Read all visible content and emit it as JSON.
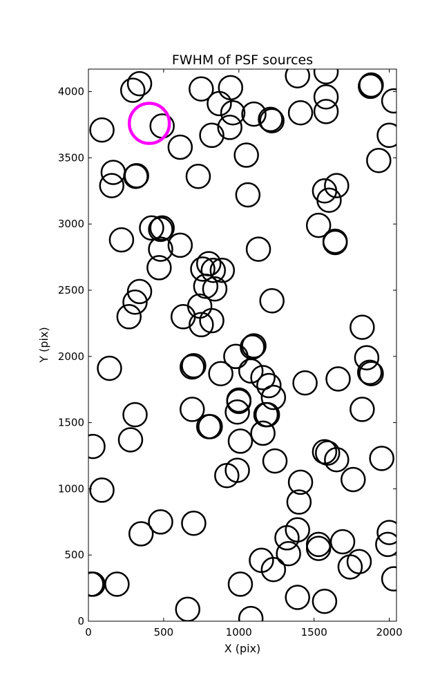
{
  "chart_data": {
    "type": "scatter",
    "title": "FWHM of PSF sources",
    "xlabel": "X (pix)",
    "ylabel": "Y (pix)",
    "xlim": [
      0,
      2048
    ],
    "ylim": [
      0,
      4170
    ],
    "xticks": [
      0,
      500,
      1000,
      1500,
      2000
    ],
    "yticks": [
      0,
      500,
      1000,
      1500,
      2000,
      2500,
      3000,
      3500,
      4000
    ],
    "grid": false,
    "marker": "open circle",
    "marker_color": "#000000",
    "highlight_color": "#ff00ff",
    "points": [
      [
        340,
        4060
      ],
      [
        295,
        4010
      ],
      [
        90,
        3710
      ],
      [
        490,
        3740
      ],
      [
        610,
        3580
      ],
      [
        165,
        3390
      ],
      [
        155,
        3290
      ],
      [
        315,
        3360
      ],
      [
        320,
        3365
      ],
      [
        730,
        3360
      ],
      [
        750,
        4020
      ],
      [
        870,
        3910
      ],
      [
        945,
        4030
      ],
      [
        960,
        3840
      ],
      [
        940,
        3730
      ],
      [
        820,
        3670
      ],
      [
        1100,
        3830
      ],
      [
        1210,
        3790
      ],
      [
        1220,
        3780
      ],
      [
        1050,
        3520
      ],
      [
        1060,
        3220
      ],
      [
        1390,
        4120
      ],
      [
        1410,
        3840
      ],
      [
        1580,
        4150
      ],
      [
        1580,
        3960
      ],
      [
        1580,
        3850
      ],
      [
        1880,
        4050
      ],
      [
        1875,
        4040
      ],
      [
        2030,
        3930
      ],
      [
        2000,
        3670
      ],
      [
        1930,
        3480
      ],
      [
        1570,
        3250
      ],
      [
        1650,
        3290
      ],
      [
        1600,
        3180
      ],
      [
        1530,
        2990
      ],
      [
        1640,
        2870
      ],
      [
        1640,
        2860
      ],
      [
        220,
        2880
      ],
      [
        420,
        2970
      ],
      [
        490,
        2970
      ],
      [
        480,
        2960
      ],
      [
        480,
        2810
      ],
      [
        470,
        2670
      ],
      [
        610,
        2840
      ],
      [
        340,
        2490
      ],
      [
        310,
        2410
      ],
      [
        270,
        2300
      ],
      [
        630,
        2300
      ],
      [
        740,
        2380
      ],
      [
        750,
        2240
      ],
      [
        820,
        2270
      ],
      [
        760,
        2660
      ],
      [
        800,
        2700
      ],
      [
        830,
        2650
      ],
      [
        890,
        2650
      ],
      [
        780,
        2530
      ],
      [
        840,
        2510
      ],
      [
        1130,
        2810
      ],
      [
        1220,
        2420
      ],
      [
        1100,
        2080
      ],
      [
        1090,
        2070
      ],
      [
        700,
        1930
      ],
      [
        690,
        1920
      ],
      [
        980,
        2000
      ],
      [
        1080,
        1890
      ],
      [
        1160,
        1840
      ],
      [
        1200,
        1780
      ],
      [
        880,
        1870
      ],
      [
        1230,
        1690
      ],
      [
        1440,
        1800
      ],
      [
        1660,
        1830
      ],
      [
        1820,
        2220
      ],
      [
        1850,
        1990
      ],
      [
        1870,
        1880
      ],
      [
        1880,
        1870
      ],
      [
        140,
        1910
      ],
      [
        690,
        1600
      ],
      [
        810,
        1470
      ],
      [
        800,
        1470
      ],
      [
        1000,
        1660
      ],
      [
        1000,
        1670
      ],
      [
        990,
        1580
      ],
      [
        1180,
        1560
      ],
      [
        1190,
        1560
      ],
      [
        1160,
        1420
      ],
      [
        1010,
        1360
      ],
      [
        310,
        1560
      ],
      [
        280,
        1370
      ],
      [
        30,
        1320
      ],
      [
        90,
        990
      ],
      [
        920,
        1100
      ],
      [
        990,
        1140
      ],
      [
        1240,
        1210
      ],
      [
        1410,
        1050
      ],
      [
        1400,
        900
      ],
      [
        1570,
        1280
      ],
      [
        1590,
        1270
      ],
      [
        1650,
        1220
      ],
      [
        1760,
        1070
      ],
      [
        1950,
        1230
      ],
      [
        1820,
        1600
      ],
      [
        350,
        660
      ],
      [
        480,
        750
      ],
      [
        700,
        740
      ],
      [
        1320,
        630
      ],
      [
        1390,
        690
      ],
      [
        1330,
        510
      ],
      [
        1530,
        580
      ],
      [
        1530,
        550
      ],
      [
        1690,
        600
      ],
      [
        2000,
        670
      ],
      [
        1990,
        580
      ],
      [
        2030,
        320
      ],
      [
        1150,
        460
      ],
      [
        1230,
        390
      ],
      [
        1740,
        410
      ],
      [
        1800,
        450
      ],
      [
        20,
        280
      ],
      [
        30,
        280
      ],
      [
        190,
        280
      ],
      [
        1010,
        280
      ],
      [
        660,
        90
      ],
      [
        1080,
        20
      ],
      [
        1390,
        180
      ],
      [
        1570,
        150
      ]
    ],
    "highlight_point": [
      405,
      3760
    ]
  }
}
